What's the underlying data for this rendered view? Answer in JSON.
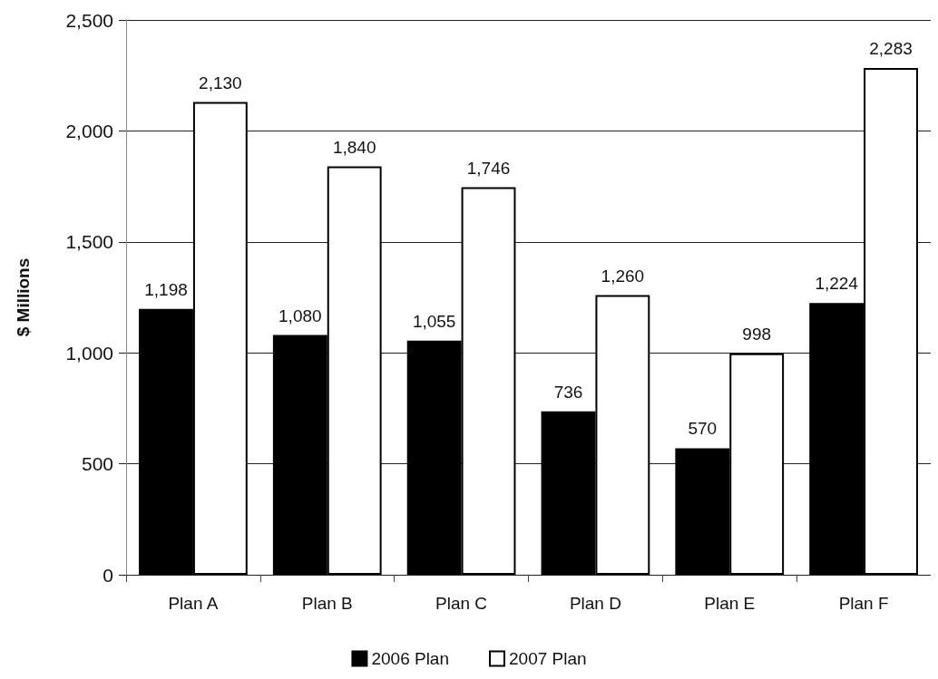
{
  "chart_data": {
    "type": "bar",
    "ylabel": "$ Millions",
    "categories": [
      "Plan A",
      "Plan B",
      "Plan C",
      "Plan D",
      "Plan E",
      "Plan F"
    ],
    "series": [
      {
        "name": "2006 Plan",
        "color": "#000000",
        "values": [
          1198,
          1080,
          1055,
          736,
          570,
          1224
        ],
        "value_labels": [
          "1,198",
          "1,080",
          "1,055",
          "736",
          "570",
          "1,224"
        ]
      },
      {
        "name": "2007 Plan",
        "color": "#ffffff",
        "values": [
          2130,
          1840,
          1746,
          1260,
          998,
          2283
        ],
        "value_labels": [
          "2,130",
          "1,840",
          "1,746",
          "1,260",
          "998",
          "2,283"
        ]
      }
    ],
    "ylim": [
      0,
      2500
    ],
    "yticks": [
      0,
      500,
      {
        "value": 1000,
        "label": "1,000"
      },
      {
        "value": 1500,
        "label": "1,500"
      },
      {
        "value": 2000,
        "label": "2,000"
      },
      {
        "value": 2500,
        "label": "2,500"
      }
    ],
    "grid": "y",
    "legend": "bottom"
  }
}
